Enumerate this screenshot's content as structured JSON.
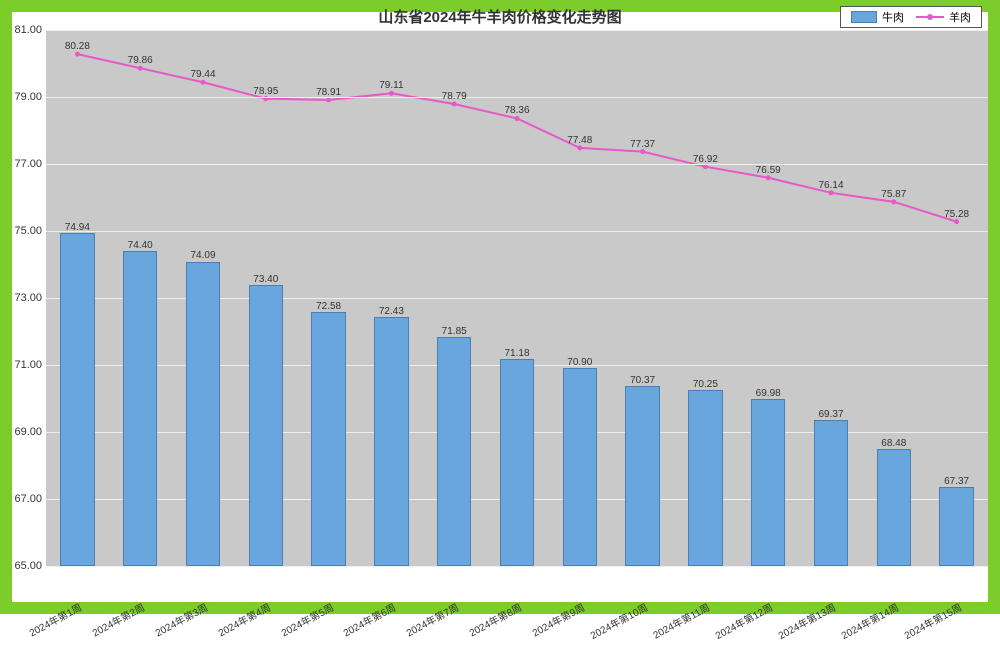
{
  "chart": {
    "type": "bar+line",
    "title": "山东省2024年牛羊肉价格变化走势图",
    "title_fontsize": 15,
    "title_color": "#333333",
    "frame_border_color": "#7ccd2a",
    "frame_border_width": 12,
    "plot_bg": "#c9c9c9",
    "gridline_color": "#eeeeee",
    "legend": {
      "bar_label": "牛肉",
      "line_label": "羊肉"
    },
    "y_axis": {
      "min": 65.0,
      "max": 81.0,
      "tick_step": 2.0,
      "tick_decimals": 2,
      "label_fontsize": 11
    },
    "x_categories": [
      "2024年第1周",
      "2024年第2周",
      "2024年第3周",
      "2024年第4周",
      "2024年第5周",
      "2024年第6周",
      "2024年第7周",
      "2024年第8周",
      "2024年第9周",
      "2024年第10周",
      "2024年第11周",
      "2024年第12周",
      "2024年第13周",
      "2024年第14周",
      "2024年第15周"
    ],
    "bar_series": {
      "name": "牛肉",
      "values": [
        74.94,
        74.4,
        74.09,
        73.4,
        72.58,
        72.43,
        71.85,
        71.18,
        70.9,
        70.37,
        70.25,
        69.98,
        69.37,
        68.48,
        67.37
      ],
      "fill_color": "#6aa6de",
      "border_color": "#4a7fb5",
      "bar_width_ratio": 0.55,
      "label_fontsize": 10
    },
    "line_series": {
      "name": "羊肉",
      "values": [
        80.28,
        79.86,
        79.44,
        78.95,
        78.91,
        79.11,
        78.79,
        78.36,
        77.48,
        77.37,
        76.92,
        76.59,
        76.14,
        75.87,
        75.28
      ],
      "line_color": "#e758c9",
      "marker_color": "#e758c9",
      "marker_size": 5,
      "line_width": 2,
      "label_fontsize": 10
    }
  }
}
